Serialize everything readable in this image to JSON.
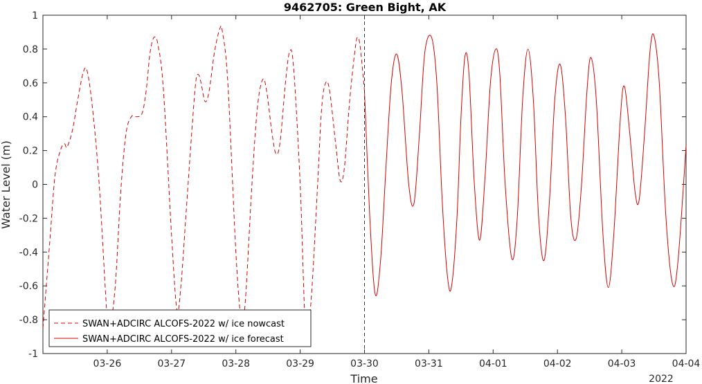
{
  "chart_data": {
    "type": "line",
    "title": "9462705: Green Bight, AK",
    "xlabel": "Time",
    "ylabel": "Water Level (m)",
    "year_label": "2022",
    "xlim": [
      "2022-03-25 00:00",
      "2022-04-04 00:00"
    ],
    "ylim": [
      -1,
      1
    ],
    "x_ticks": [
      "03-26",
      "03-27",
      "03-28",
      "03-29",
      "03-30",
      "03-31",
      "04-01",
      "04-02",
      "04-03",
      "04-04"
    ],
    "y_ticks": [
      "-1",
      "-0.8",
      "-0.6",
      "-0.4",
      "-0.2",
      "0",
      "0.2",
      "0.4",
      "0.6",
      "0.8",
      "1"
    ],
    "grid": false,
    "legend_position": "bottom-left",
    "divider_x": "2022-03-30 00:00",
    "colors": {
      "series": "#d40000",
      "axis": "#262626"
    },
    "series": [
      {
        "name": "SWAN+ADCIRC ALCOFS-2022 w/ ice nowcast",
        "style": "dashed",
        "points": [
          [
            "2022-03-25 00:00",
            -0.85
          ],
          [
            "2022-03-25 02:30",
            -0.35
          ],
          [
            "2022-03-25 04:30",
            0.05
          ],
          [
            "2022-03-25 06:30",
            0.2
          ],
          [
            "2022-03-25 08:00",
            0.24
          ],
          [
            "2022-03-25 09:00",
            0.22
          ],
          [
            "2022-03-25 11:00",
            0.32
          ],
          [
            "2022-03-25 13:00",
            0.5
          ],
          [
            "2022-03-25 15:00",
            0.66
          ],
          [
            "2022-03-25 16:30",
            0.67
          ],
          [
            "2022-03-25 18:30",
            0.45
          ],
          [
            "2022-03-25 21:00",
            0.0
          ],
          [
            "2022-03-26 00:00",
            -0.8
          ],
          [
            "2022-03-26 01:00",
            -0.85
          ],
          [
            "2022-03-26 03:00",
            -0.6
          ],
          [
            "2022-03-26 05:00",
            -0.05
          ],
          [
            "2022-03-26 07:00",
            0.3
          ],
          [
            "2022-03-26 09:00",
            0.4
          ],
          [
            "2022-03-26 11:00",
            0.4
          ],
          [
            "2022-03-26 13:00",
            0.42
          ],
          [
            "2022-03-26 14:30",
            0.55
          ],
          [
            "2022-03-26 16:00",
            0.78
          ],
          [
            "2022-03-26 17:30",
            0.87
          ],
          [
            "2022-03-26 19:00",
            0.82
          ],
          [
            "2022-03-26 21:00",
            0.55
          ],
          [
            "2022-03-27 00:00",
            -0.3
          ],
          [
            "2022-03-27 02:00",
            -0.74
          ],
          [
            "2022-03-27 03:30",
            -0.6
          ],
          [
            "2022-03-27 05:30",
            -0.15
          ],
          [
            "2022-03-27 07:30",
            0.3
          ],
          [
            "2022-03-27 09:00",
            0.6
          ],
          [
            "2022-03-27 10:00",
            0.65
          ],
          [
            "2022-03-27 11:00",
            0.6
          ],
          [
            "2022-03-27 12:30",
            0.49
          ],
          [
            "2022-03-27 14:00",
            0.55
          ],
          [
            "2022-03-27 16:00",
            0.78
          ],
          [
            "2022-03-27 18:00",
            0.92
          ],
          [
            "2022-03-27 19:00",
            0.9
          ],
          [
            "2022-03-27 21:00",
            0.6
          ],
          [
            "2022-03-28 00:00",
            -0.4
          ],
          [
            "2022-03-28 02:00",
            -0.8
          ],
          [
            "2022-03-28 03:30",
            -0.7
          ],
          [
            "2022-03-28 06:00",
            0.0
          ],
          [
            "2022-03-28 08:00",
            0.45
          ],
          [
            "2022-03-28 10:00",
            0.62
          ],
          [
            "2022-03-28 11:30",
            0.55
          ],
          [
            "2022-03-28 13:30",
            0.3
          ],
          [
            "2022-03-28 15:00",
            0.18
          ],
          [
            "2022-03-28 16:30",
            0.25
          ],
          [
            "2022-03-28 18:30",
            0.6
          ],
          [
            "2022-03-28 20:00",
            0.78
          ],
          [
            "2022-03-28 21:30",
            0.7
          ],
          [
            "2022-03-29 00:00",
            0.0
          ],
          [
            "2022-03-29 02:00",
            -0.85
          ],
          [
            "2022-03-29 04:00",
            -0.7
          ],
          [
            "2022-03-29 06:30",
            0.0
          ],
          [
            "2022-03-29 08:00",
            0.45
          ],
          [
            "2022-03-29 09:30",
            0.6
          ],
          [
            "2022-03-29 11:00",
            0.55
          ],
          [
            "2022-03-29 13:30",
            0.2
          ],
          [
            "2022-03-29 15:00",
            0.02
          ],
          [
            "2022-03-29 16:30",
            0.1
          ],
          [
            "2022-03-29 18:30",
            0.5
          ],
          [
            "2022-03-29 20:30",
            0.8
          ],
          [
            "2022-03-29 21:30",
            0.87
          ],
          [
            "2022-03-29 22:30",
            0.8
          ],
          [
            "2022-03-30 00:00",
            0.55
          ]
        ]
      },
      {
        "name": "SWAN+ADCIRC ALCOFS-2022 w/ ice forecast",
        "style": "solid",
        "points": [
          [
            "2022-03-30 00:00",
            0.55
          ],
          [
            "2022-03-30 02:00",
            -0.2
          ],
          [
            "2022-03-30 04:00",
            -0.65
          ],
          [
            "2022-03-30 06:00",
            -0.45
          ],
          [
            "2022-03-30 08:00",
            0.1
          ],
          [
            "2022-03-30 10:00",
            0.6
          ],
          [
            "2022-03-30 12:00",
            0.77
          ],
          [
            "2022-03-30 14:00",
            0.55
          ],
          [
            "2022-03-30 16:30",
            0.0
          ],
          [
            "2022-03-30 18:30",
            -0.11
          ],
          [
            "2022-03-30 20:30",
            0.3
          ],
          [
            "2022-03-30 22:30",
            0.78
          ],
          [
            "2022-03-31 01:00",
            0.87
          ],
          [
            "2022-03-31 03:00",
            0.6
          ],
          [
            "2022-03-31 05:00",
            -0.1
          ],
          [
            "2022-03-31 07:00",
            -0.55
          ],
          [
            "2022-03-31 08:30",
            -0.6
          ],
          [
            "2022-03-31 10:30",
            -0.2
          ],
          [
            "2022-03-31 12:00",
            0.4
          ],
          [
            "2022-03-31 13:30",
            0.76
          ],
          [
            "2022-03-31 15:00",
            0.65
          ],
          [
            "2022-03-31 17:00",
            0.0
          ],
          [
            "2022-03-31 19:00",
            -0.33
          ],
          [
            "2022-03-31 21:00",
            0.05
          ],
          [
            "2022-03-31 23:00",
            0.6
          ],
          [
            "2022-04-01 01:00",
            0.8
          ],
          [
            "2022-04-01 02:30",
            0.65
          ],
          [
            "2022-04-01 04:30",
            0.0
          ],
          [
            "2022-04-01 07:00",
            -0.44
          ],
          [
            "2022-04-01 09:00",
            -0.2
          ],
          [
            "2022-04-01 11:00",
            0.5
          ],
          [
            "2022-04-01 13:00",
            0.8
          ],
          [
            "2022-04-01 15:00",
            0.5
          ],
          [
            "2022-04-01 17:00",
            -0.2
          ],
          [
            "2022-04-01 19:00",
            -0.45
          ],
          [
            "2022-04-01 21:00",
            -0.1
          ],
          [
            "2022-04-01 23:00",
            0.5
          ],
          [
            "2022-04-02 01:00",
            0.71
          ],
          [
            "2022-04-02 03:00",
            0.4
          ],
          [
            "2022-04-02 05:00",
            -0.2
          ],
          [
            "2022-04-02 07:00",
            -0.32
          ],
          [
            "2022-04-02 09:00",
            0.0
          ],
          [
            "2022-04-02 11:00",
            0.55
          ],
          [
            "2022-04-02 12:30",
            0.75
          ],
          [
            "2022-04-02 14:30",
            0.5
          ],
          [
            "2022-04-02 17:00",
            -0.3
          ],
          [
            "2022-04-02 19:00",
            -0.61
          ],
          [
            "2022-04-02 21:00",
            -0.3
          ],
          [
            "2022-04-02 23:30",
            0.4
          ],
          [
            "2022-04-03 01:00",
            0.58
          ],
          [
            "2022-04-03 03:00",
            0.3
          ],
          [
            "2022-04-03 05:00",
            -0.05
          ],
          [
            "2022-04-03 06:30",
            -0.09
          ],
          [
            "2022-04-03 08:30",
            0.3
          ],
          [
            "2022-04-03 10:30",
            0.78
          ],
          [
            "2022-04-03 12:00",
            0.88
          ],
          [
            "2022-04-03 14:00",
            0.6
          ],
          [
            "2022-04-03 16:30",
            -0.2
          ],
          [
            "2022-04-03 19:00",
            -0.59
          ],
          [
            "2022-04-03 21:00",
            -0.45
          ],
          [
            "2022-04-04 00:00",
            0.23
          ]
        ]
      }
    ]
  }
}
